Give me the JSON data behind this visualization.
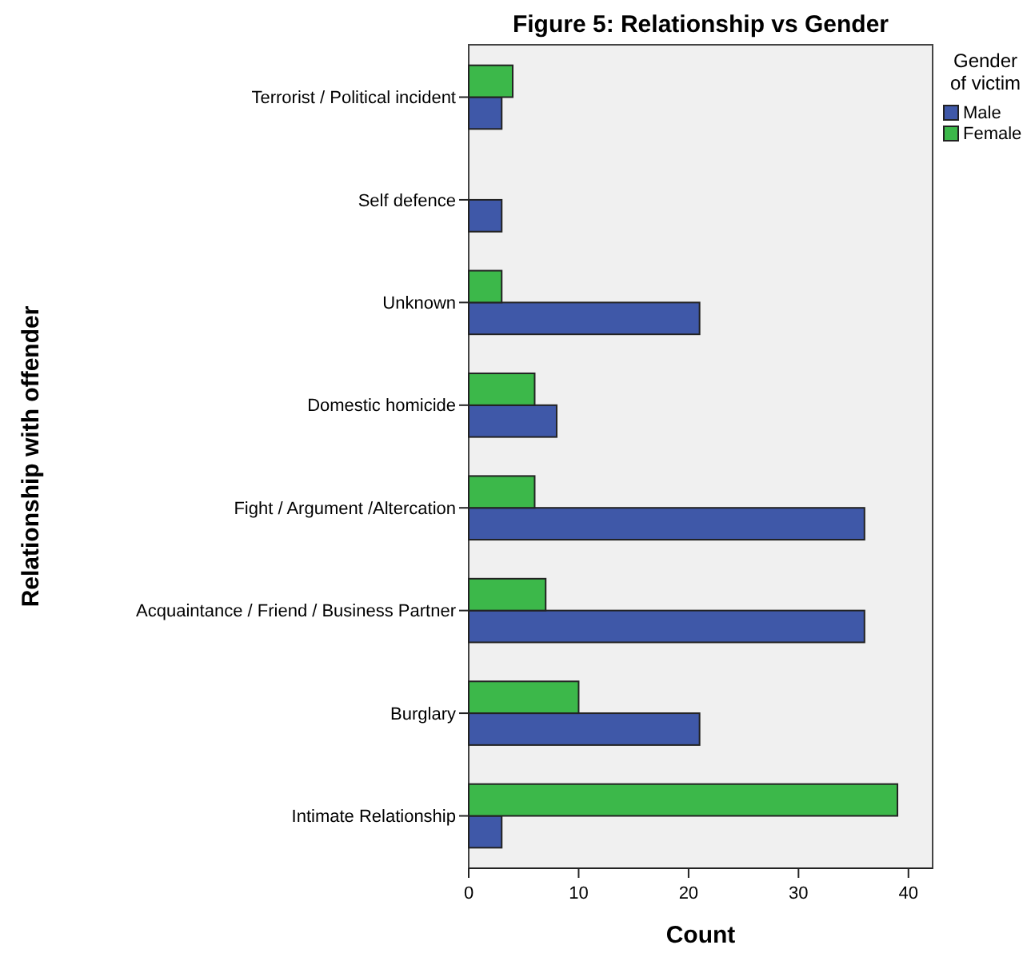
{
  "chart_data": {
    "type": "bar",
    "orientation": "horizontal",
    "title": "Figure 5: Relationship vs Gender",
    "xlabel": "Count",
    "ylabel": "Relationship with offender",
    "legend_title": "Gender of victim",
    "legend": "right",
    "categories": [
      "Terrorist / Political incident",
      "Self defence",
      "Unknown",
      "Domestic homicide",
      "Fight / Argument /Altercation",
      "Acquaintance / Friend / Business Partner",
      "Burglary",
      "Intimate Relationship"
    ],
    "series": [
      {
        "name": "Male",
        "color": "#3f58a8",
        "values": [
          3,
          3,
          21,
          8,
          36,
          36,
          21,
          3
        ]
      },
      {
        "name": "Female",
        "color": "#3cb84a",
        "values": [
          4,
          null,
          3,
          6,
          6,
          7,
          10,
          39
        ]
      }
    ],
    "xlim": [
      0,
      42.2
    ],
    "xticks": [
      0,
      10,
      20,
      30,
      40
    ]
  }
}
